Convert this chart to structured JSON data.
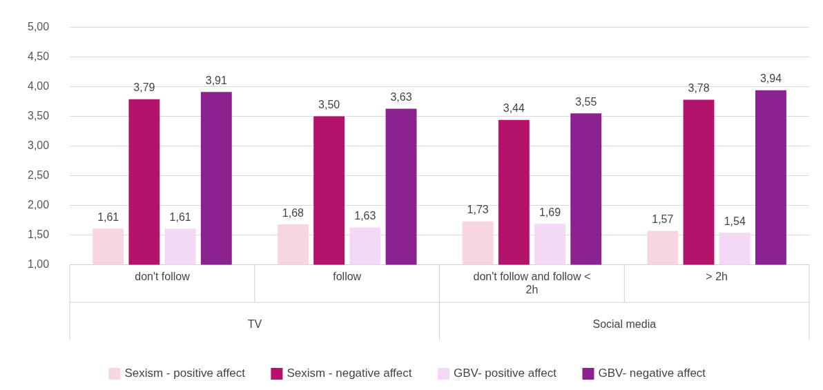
{
  "chart_data": {
    "type": "bar",
    "categories": [
      "don't follow",
      "follow",
      "don't follow and follow < 2h",
      "> 2h"
    ],
    "series": [
      {
        "name": "Sexism - positive affect",
        "color": "#f8d5e3",
        "values": [
          1.61,
          1.68,
          1.73,
          1.57
        ],
        "value_labels": [
          "1,61",
          "1,68",
          "1,73",
          "1,57"
        ]
      },
      {
        "name": "Sexism - negative affect",
        "color": "#b3136a",
        "values": [
          3.79,
          3.5,
          3.44,
          3.78
        ],
        "value_labels": [
          "3,79",
          "3,50",
          "3,44",
          "3,78"
        ]
      },
      {
        "name": "GBV- positive affect",
        "color": "#f3d9f5",
        "values": [
          1.61,
          1.63,
          1.69,
          1.54
        ],
        "value_labels": [
          "1,61",
          "1,63",
          "1,69",
          "1,54"
        ]
      },
      {
        "name": "GBV- negative affect",
        "color": "#8c2190",
        "values": [
          3.91,
          3.63,
          3.55,
          3.94
        ],
        "value_labels": [
          "3,91",
          "3,63",
          "3,55",
          "3,94"
        ]
      }
    ],
    "annotations": [
      "TV",
      "Social media"
    ],
    "ylim": [
      1,
      5
    ],
    "yticks": [
      {
        "value": 1,
        "label": "1,00"
      },
      {
        "value": 1.5,
        "label": "1,50"
      },
      {
        "value": 2,
        "label": "2,00"
      },
      {
        "value": 2.5,
        "label": "2,50"
      },
      {
        "value": 3,
        "label": "3,00"
      },
      {
        "value": 3.5,
        "label": "3,50"
      },
      {
        "value": 4,
        "label": "4,00"
      },
      {
        "value": 4.5,
        "label": "4,50"
      },
      {
        "value": 5,
        "label": "5,00"
      }
    ],
    "grid": "y",
    "legend": "bottom"
  }
}
